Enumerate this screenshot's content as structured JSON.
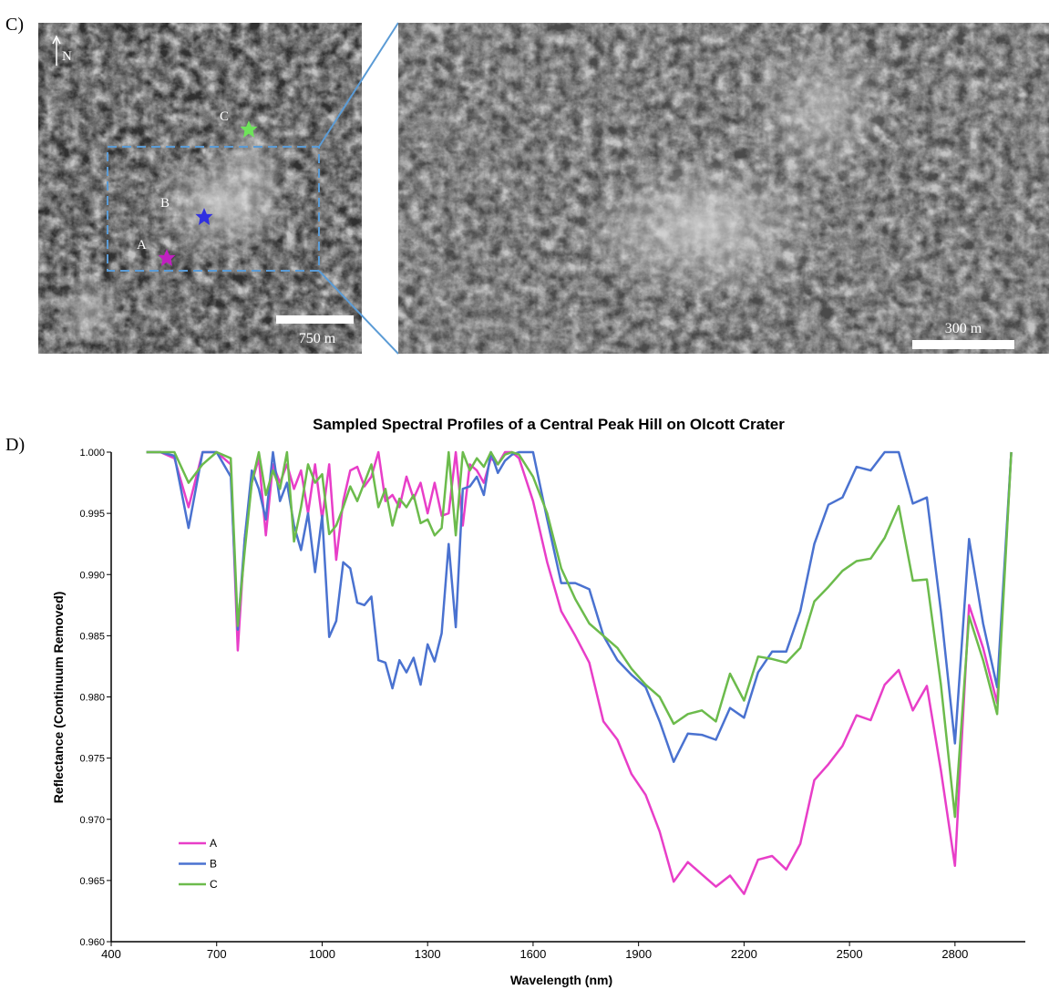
{
  "panels": {
    "c_label": "C)",
    "d_label": "D)",
    "north": "N",
    "points": [
      "A",
      "B",
      "C"
    ],
    "scale_left": "750 m",
    "scale_right": "300 m"
  },
  "chart_data": {
    "type": "line",
    "title": "Sampled Spectral Profiles of a Central Peak Hill on Olcott Crater",
    "x_label": "Wavelength (nm)",
    "y_label": "Reflectance (Continuum Removed)",
    "x": [
      500,
      540,
      580,
      620,
      660,
      700,
      740,
      760,
      780,
      800,
      820,
      840,
      860,
      880,
      900,
      920,
      940,
      960,
      980,
      1000,
      1020,
      1040,
      1060,
      1080,
      1100,
      1120,
      1140,
      1160,
      1180,
      1200,
      1220,
      1240,
      1260,
      1280,
      1300,
      1320,
      1340,
      1360,
      1380,
      1400,
      1420,
      1440,
      1460,
      1480,
      1500,
      1520,
      1540,
      1560,
      1600,
      1640,
      1680,
      1720,
      1760,
      1800,
      1840,
      1880,
      1920,
      1960,
      2000,
      2040,
      2080,
      2120,
      2160,
      2200,
      2240,
      2280,
      2320,
      2360,
      2400,
      2440,
      2480,
      2520,
      2560,
      2600,
      2640,
      2680,
      2720,
      2760,
      2800,
      2840,
      2880,
      2920,
      2960
    ],
    "series": [
      {
        "name": "A",
        "color": "#e83ec8",
        "values": [
          1.0,
          1.0,
          0.9995,
          0.9955,
          1.0,
          1.0,
          0.999,
          0.9838,
          0.993,
          0.9975,
          0.9995,
          0.9932,
          0.999,
          0.9975,
          0.999,
          0.997,
          0.9985,
          0.995,
          0.999,
          0.9945,
          0.999,
          0.9912,
          0.996,
          0.9985,
          0.9988,
          0.9972,
          0.998,
          1.0,
          0.996,
          0.9965,
          0.9955,
          0.998,
          0.9962,
          0.9975,
          0.995,
          0.9975,
          0.9948,
          0.995,
          1.0,
          0.994,
          0.999,
          0.9985,
          0.9975,
          0.9995,
          0.999,
          1.0,
          1.0,
          0.9995,
          0.996,
          0.991,
          0.987,
          0.985,
          0.9828,
          0.978,
          0.9765,
          0.9737,
          0.972,
          0.969,
          0.9649,
          0.9665,
          0.9655,
          0.9645,
          0.9654,
          0.9639,
          0.9667,
          0.967,
          0.9659,
          0.968,
          0.9732,
          0.9745,
          0.976,
          0.9785,
          0.9781,
          0.981,
          0.9822,
          0.9789,
          0.9809,
          0.974,
          0.9662,
          0.9875,
          0.984,
          0.9795,
          1.0
        ]
      },
      {
        "name": "B",
        "color": "#4a72d0",
        "values": [
          1.0,
          1.0,
          0.9997,
          0.9938,
          1.0,
          1.0,
          0.998,
          0.9855,
          0.993,
          0.9985,
          0.997,
          0.9945,
          1.0,
          0.996,
          0.9975,
          0.994,
          0.992,
          0.995,
          0.9902,
          0.9948,
          0.9849,
          0.9862,
          0.991,
          0.9905,
          0.9877,
          0.9875,
          0.9882,
          0.983,
          0.9828,
          0.9807,
          0.983,
          0.982,
          0.9832,
          0.981,
          0.9843,
          0.9829,
          0.9852,
          0.9925,
          0.9857,
          0.997,
          0.9972,
          0.998,
          0.9965,
          1.0,
          0.9983,
          0.9993,
          0.9998,
          1.0,
          1.0,
          0.9945,
          0.9893,
          0.9893,
          0.9888,
          0.985,
          0.983,
          0.9818,
          0.9808,
          0.978,
          0.9747,
          0.977,
          0.9769,
          0.9765,
          0.9791,
          0.9783,
          0.982,
          0.9837,
          0.9837,
          0.987,
          0.9925,
          0.9957,
          0.9963,
          0.9988,
          0.9985,
          1.0,
          1.0,
          0.9958,
          0.9963,
          0.987,
          0.9762,
          0.9929,
          0.986,
          0.9808,
          1.0
        ]
      },
      {
        "name": "C",
        "color": "#6cbb4c",
        "values": [
          1.0,
          1.0,
          1.0,
          0.9975,
          0.999,
          1.0,
          0.9995,
          0.9858,
          0.992,
          0.9975,
          1.0,
          0.9965,
          0.9985,
          0.997,
          1.0,
          0.9927,
          0.9955,
          0.999,
          0.9975,
          0.9982,
          0.9933,
          0.994,
          0.9955,
          0.9972,
          0.996,
          0.9975,
          0.999,
          0.9955,
          0.997,
          0.994,
          0.9962,
          0.9955,
          0.9965,
          0.9942,
          0.9945,
          0.9932,
          0.9938,
          1.0,
          0.9932,
          1.0,
          0.9985,
          0.9995,
          0.9988,
          1.0,
          0.999,
          0.9998,
          1.0,
          0.9998,
          0.998,
          0.995,
          0.9905,
          0.988,
          0.986,
          0.985,
          0.984,
          0.9823,
          0.981,
          0.98,
          0.9778,
          0.9786,
          0.9789,
          0.978,
          0.9819,
          0.9797,
          0.9833,
          0.9831,
          0.9828,
          0.984,
          0.9878,
          0.989,
          0.9903,
          0.9911,
          0.9913,
          0.993,
          0.9956,
          0.9895,
          0.9896,
          0.981,
          0.9702,
          0.9866,
          0.983,
          0.9786,
          1.0
        ]
      }
    ],
    "xlim": [
      400,
      3000
    ],
    "xticks": [
      400,
      700,
      1000,
      1300,
      1600,
      1900,
      2200,
      2500,
      2800
    ],
    "ylim": [
      0.96,
      1.0
    ],
    "yticks": [
      {
        "value": 0.96,
        "label": "0.960"
      },
      {
        "value": 0.965,
        "label": "0.965"
      },
      {
        "value": 0.97,
        "label": "0.970"
      },
      {
        "value": 0.975,
        "label": "0.975"
      },
      {
        "value": 0.98,
        "label": "0.980"
      },
      {
        "value": 0.985,
        "label": "0.985"
      },
      {
        "value": 0.99,
        "label": "0.990"
      },
      {
        "value": 0.995,
        "label": "0.995"
      },
      {
        "value": 1.0,
        "label": "1.000"
      }
    ],
    "grid": false,
    "legend": "lower left"
  }
}
